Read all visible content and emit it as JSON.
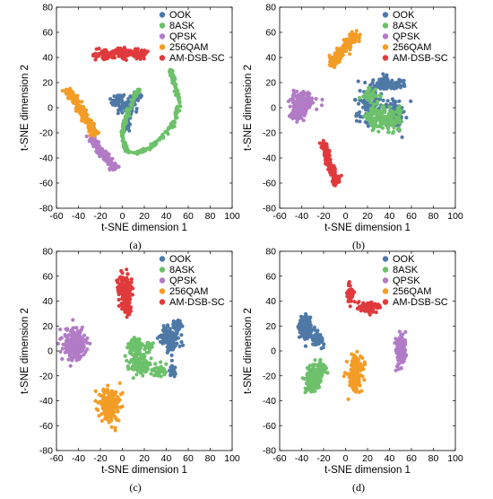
{
  "colors": {
    "OOK": "#4e79a7",
    "8ASK": "#6cc16a",
    "QPSK": "#b27bc6",
    "256QAM": "#f39c26",
    "AM-DSB-SC": "#e03a3c"
  },
  "chart_data": [
    {
      "type": "scatter",
      "caption": "(a)",
      "xlabel": "t-SNE dimension 1",
      "ylabel": "t-SNE dimension 2",
      "xlim": [
        -60,
        100
      ],
      "ylim": [
        -80,
        80
      ],
      "xticks": [
        "-60",
        "-40",
        "-20",
        "0",
        "20",
        "40",
        "60",
        "80",
        "100"
      ],
      "yticks": [
        "80",
        "60",
        "40",
        "20",
        "0",
        "-20",
        "-40",
        "-60",
        "-80"
      ],
      "grid": false,
      "legend": "top-right",
      "series": [
        {
          "name": "OOK",
          "clusters": [
            {
              "cx": -4,
              "cy": 5,
              "rx": 5,
              "ry": 6,
              "n": 70
            },
            {
              "cx": 6,
              "cy": 2,
              "rx": 5,
              "ry": 6,
              "n": 60
            },
            {
              "cx": 4,
              "cy": -14,
              "rx": 3,
              "ry": 4,
              "n": 25
            },
            {
              "cx": 14,
              "cy": 10,
              "rx": 3,
              "ry": 3,
              "n": 20
            }
          ]
        },
        {
          "name": "8ASK",
          "path": [
            [
              44,
              30
            ],
            [
              48,
              18
            ],
            [
              52,
              5
            ],
            [
              48,
              -10
            ],
            [
              38,
              -22
            ],
            [
              25,
              -32
            ],
            [
              12,
              -36
            ],
            [
              3,
              -34
            ],
            [
              0,
              -20
            ],
            [
              3,
              -8
            ],
            [
              8,
              2
            ],
            [
              13,
              12
            ],
            [
              16,
              14
            ]
          ],
          "spread": 1.6,
          "n": 260
        },
        {
          "name": "QPSK",
          "path": [
            [
              -28,
              -24
            ],
            [
              -22,
              -32
            ],
            [
              -16,
              -38
            ],
            [
              -10,
              -44
            ],
            [
              -6,
              -48
            ]
          ],
          "spread": 3.2,
          "n": 180
        },
        {
          "name": "256QAM",
          "path": [
            [
              -50,
              14
            ],
            [
              -44,
              8
            ],
            [
              -38,
              0
            ],
            [
              -33,
              -8
            ],
            [
              -28,
              -16
            ],
            [
              -24,
              -22
            ]
          ],
          "spread": 3.4,
          "n": 200
        },
        {
          "name": "AM-DSB-SC",
          "clusters": [
            {
              "cx": -16,
              "cy": 42,
              "rx": 8,
              "ry": 3.5,
              "n": 60
            },
            {
              "cx": 0,
              "cy": 44,
              "rx": 8,
              "ry": 4,
              "n": 70
            },
            {
              "cx": 16,
              "cy": 43,
              "rx": 7,
              "ry": 3.5,
              "n": 60
            }
          ]
        }
      ]
    },
    {
      "type": "scatter",
      "caption": "(b)",
      "xlabel": "t-SNE dimension 1",
      "ylabel": "t-SNE dimension 2",
      "xlim": [
        -60,
        100
      ],
      "ylim": [
        -80,
        80
      ],
      "xticks": [
        "-60",
        "-40",
        "-20",
        "0",
        "20",
        "40",
        "60",
        "80",
        "100"
      ],
      "yticks": [
        "80",
        "60",
        "40",
        "20",
        "0",
        "-20",
        "-40",
        "-60",
        "-80"
      ],
      "grid": false,
      "legend": "top-right",
      "series": [
        {
          "name": "OOK",
          "clusters": [
            {
              "cx": 22,
              "cy": 4,
              "rx": 10,
              "ry": 14,
              "n": 110
            },
            {
              "cx": 46,
              "cy": -4,
              "rx": 8,
              "ry": 10,
              "n": 80
            },
            {
              "cx": 34,
              "cy": 20,
              "rx": 8,
              "ry": 6,
              "n": 60
            },
            {
              "cx": 48,
              "cy": 18,
              "rx": 5,
              "ry": 4,
              "n": 30
            }
          ]
        },
        {
          "name": "8ASK",
          "clusters": [
            {
              "cx": 28,
              "cy": -8,
              "rx": 10,
              "ry": 10,
              "n": 100
            },
            {
              "cx": 42,
              "cy": -10,
              "rx": 10,
              "ry": 8,
              "n": 80
            },
            {
              "cx": 22,
              "cy": 10,
              "rx": 6,
              "ry": 6,
              "n": 40
            }
          ]
        },
        {
          "name": "QPSK",
          "clusters": [
            {
              "cx": -40,
              "cy": 4,
              "rx": 9,
              "ry": 7,
              "n": 160
            },
            {
              "cx": -44,
              "cy": -6,
              "rx": 6,
              "ry": 4,
              "n": 40
            }
          ]
        },
        {
          "name": "256QAM",
          "path": [
            [
              -12,
              34
            ],
            [
              -6,
              42
            ],
            [
              0,
              48
            ],
            [
              6,
              54
            ],
            [
              9,
              58
            ]
          ],
          "spread": 4.2,
          "n": 190
        },
        {
          "name": "AM-DSB-SC",
          "path": [
            [
              -20,
              -28
            ],
            [
              -18,
              -36
            ],
            [
              -16,
              -44
            ],
            [
              -12,
              -50
            ],
            [
              -8,
              -56
            ],
            [
              -10,
              -60
            ]
          ],
          "spread": 3.4,
          "n": 150
        }
      ]
    },
    {
      "type": "scatter",
      "caption": "(c)",
      "xlabel": "t-SNE dimension 1",
      "ylabel": "t-SNE dimension 2",
      "xlim": [
        -60,
        100
      ],
      "ylim": [
        -80,
        80
      ],
      "xticks": [
        "-60",
        "-40",
        "-20",
        "0",
        "20",
        "40",
        "60",
        "80",
        "100"
      ],
      "yticks": [
        "80",
        "60",
        "40",
        "20",
        "0",
        "-20",
        "-40",
        "-60",
        "-80"
      ],
      "grid": false,
      "legend": "top-right",
      "series": [
        {
          "name": "OOK",
          "clusters": [
            {
              "cx": 44,
              "cy": 10,
              "rx": 8,
              "ry": 10,
              "n": 120
            },
            {
              "cx": 50,
              "cy": 20,
              "rx": 5,
              "ry": 4,
              "n": 40
            },
            {
              "cx": 46,
              "cy": -16,
              "rx": 3,
              "ry": 4,
              "n": 20
            }
          ]
        },
        {
          "name": "8ASK",
          "clusters": [
            {
              "cx": 12,
              "cy": 4,
              "rx": 6,
              "ry": 7,
              "n": 60
            },
            {
              "cx": 16,
              "cy": -10,
              "rx": 9,
              "ry": 8,
              "n": 110
            },
            {
              "cx": 34,
              "cy": -16,
              "rx": 6,
              "ry": 4,
              "n": 40
            },
            {
              "cx": 24,
              "cy": 4,
              "rx": 4,
              "ry": 4,
              "n": 30
            }
          ]
        },
        {
          "name": "QPSK",
          "clusters": [
            {
              "cx": -44,
              "cy": 5,
              "rx": 9,
              "ry": 11,
              "n": 220
            }
          ]
        },
        {
          "name": "256QAM",
          "clusters": [
            {
              "cx": -12,
              "cy": -44,
              "rx": 8,
              "ry": 12,
              "n": 200
            }
          ]
        },
        {
          "name": "AM-DSB-SC",
          "clusters": [
            {
              "cx": 2,
              "cy": 50,
              "rx": 6,
              "ry": 10,
              "n": 120
            },
            {
              "cx": 4,
              "cy": 34,
              "rx": 5,
              "ry": 6,
              "n": 60
            }
          ]
        }
      ]
    },
    {
      "type": "scatter",
      "caption": "(d)",
      "xlabel": "t-SNE dimension 1",
      "ylabel": "t-SNE dimension 2",
      "xlim": [
        -60,
        100
      ],
      "ylim": [
        -80,
        80
      ],
      "xticks": [
        "-60",
        "-40",
        "-20",
        "0",
        "20",
        "40",
        "60",
        "80",
        "100"
      ],
      "yticks": [
        "80",
        "60",
        "40",
        "20",
        "0",
        "-20",
        "-40",
        "-60",
        "-80"
      ],
      "grid": false,
      "legend": "top-right",
      "series": [
        {
          "name": "OOK",
          "clusters": [
            {
              "cx": -36,
              "cy": 18,
              "rx": 6,
              "ry": 10,
              "n": 110
            },
            {
              "cx": -26,
              "cy": 10,
              "rx": 5,
              "ry": 6,
              "n": 50
            }
          ]
        },
        {
          "name": "8ASK",
          "clusters": [
            {
              "cx": -30,
              "cy": -22,
              "rx": 7,
              "ry": 10,
              "n": 150
            },
            {
              "cx": -22,
              "cy": -14,
              "rx": 4,
              "ry": 6,
              "n": 40
            }
          ]
        },
        {
          "name": "QPSK",
          "clusters": [
            {
              "cx": 50,
              "cy": 0,
              "rx": 4,
              "ry": 12,
              "n": 150
            }
          ]
        },
        {
          "name": "256QAM",
          "clusters": [
            {
              "cx": 9,
              "cy": -18,
              "rx": 6,
              "ry": 12,
              "n": 170
            }
          ]
        },
        {
          "name": "AM-DSB-SC",
          "clusters": [
            {
              "cx": 4,
              "cy": 46,
              "rx": 4,
              "ry": 6,
              "n": 50
            },
            {
              "cx": 20,
              "cy": 35,
              "rx": 9,
              "ry": 4,
              "n": 80
            }
          ]
        }
      ]
    }
  ]
}
